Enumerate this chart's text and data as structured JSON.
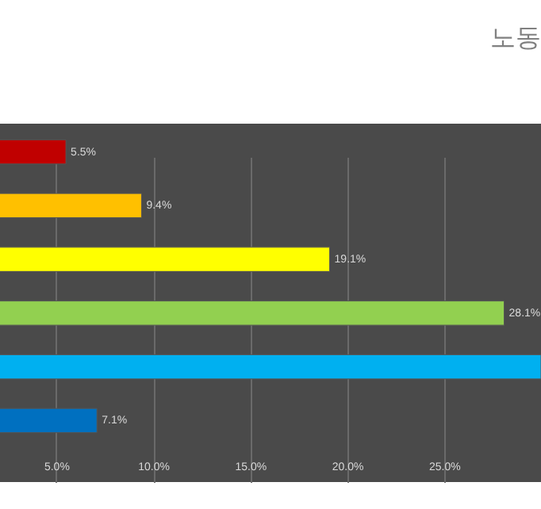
{
  "chart_data": {
    "type": "bar",
    "orientation": "horizontal",
    "title": "노동",
    "categories": [
      null,
      null,
      null,
      null,
      null,
      null
    ],
    "values": [
      5.5,
      9.4,
      19.1,
      28.1,
      30,
      7.1
    ],
    "colors": [
      "#c00000",
      "#ffc000",
      "#ffff00",
      "#92d050",
      "#00b0f0",
      "#0070c0"
    ],
    "value_labels": [
      "5.5%",
      "9.4%",
      "19.1%",
      "28.1%",
      null,
      "7.1%"
    ],
    "xlim": [
      2.1,
      30
    ],
    "xticks": [
      {
        "value": 5,
        "label": "5.0%"
      },
      {
        "value": 10,
        "label": "10.0%"
      },
      {
        "value": 15,
        "label": "15.0%"
      },
      {
        "value": 20,
        "label": "20.0%"
      },
      {
        "value": 25,
        "label": "25.0%"
      }
    ],
    "grid": "x"
  }
}
